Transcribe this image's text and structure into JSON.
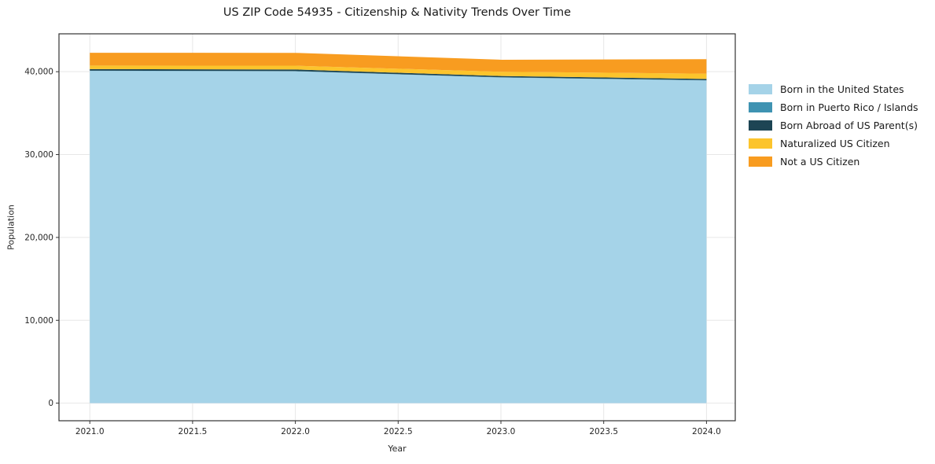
{
  "chart_data": {
    "type": "area",
    "stacked": true,
    "title": "US ZIP Code 54935 - Citizenship & Nativity Trends Over Time",
    "xlabel": "Year",
    "ylabel": "Population",
    "x": [
      2021,
      2022,
      2023,
      2024
    ],
    "series": [
      {
        "name": "Born in the United States",
        "color": "#a5d3e8",
        "values": [
          40100,
          40050,
          39300,
          38950
        ]
      },
      {
        "name": "Born in Puerto Rico / Islands",
        "color": "#3f93b2",
        "values": [
          25,
          25,
          25,
          25
        ]
      },
      {
        "name": "Born Abroad of US Parent(s)",
        "color": "#1d4554",
        "values": [
          190,
          190,
          160,
          150
        ]
      },
      {
        "name": "Naturalized US Citizen",
        "color": "#fcc42c",
        "values": [
          420,
          460,
          510,
          640
        ]
      },
      {
        "name": "Not a US Citizen",
        "color": "#f89c20",
        "values": [
          1550,
          1550,
          1450,
          1750
        ]
      }
    ],
    "xlim": [
      2020.85,
      2024.14
    ],
    "ylim": [
      -2122,
      44572
    ],
    "xticks": {
      "values": [
        2021,
        2021.5,
        2022,
        2022.5,
        2023,
        2023.5,
        2024
      ],
      "labels": [
        "2021.0",
        "2021.5",
        "2022.0",
        "2022.5",
        "2023.0",
        "2023.5",
        "2024.0"
      ]
    },
    "yticks": {
      "values": [
        0,
        10000,
        20000,
        30000,
        40000
      ],
      "labels": [
        "0",
        "10,000",
        "20,000",
        "30,000",
        "40,000"
      ]
    },
    "grid": true,
    "grid_color": "#e7e7e7",
    "spine_color": "#333333",
    "legend_position": "right"
  }
}
